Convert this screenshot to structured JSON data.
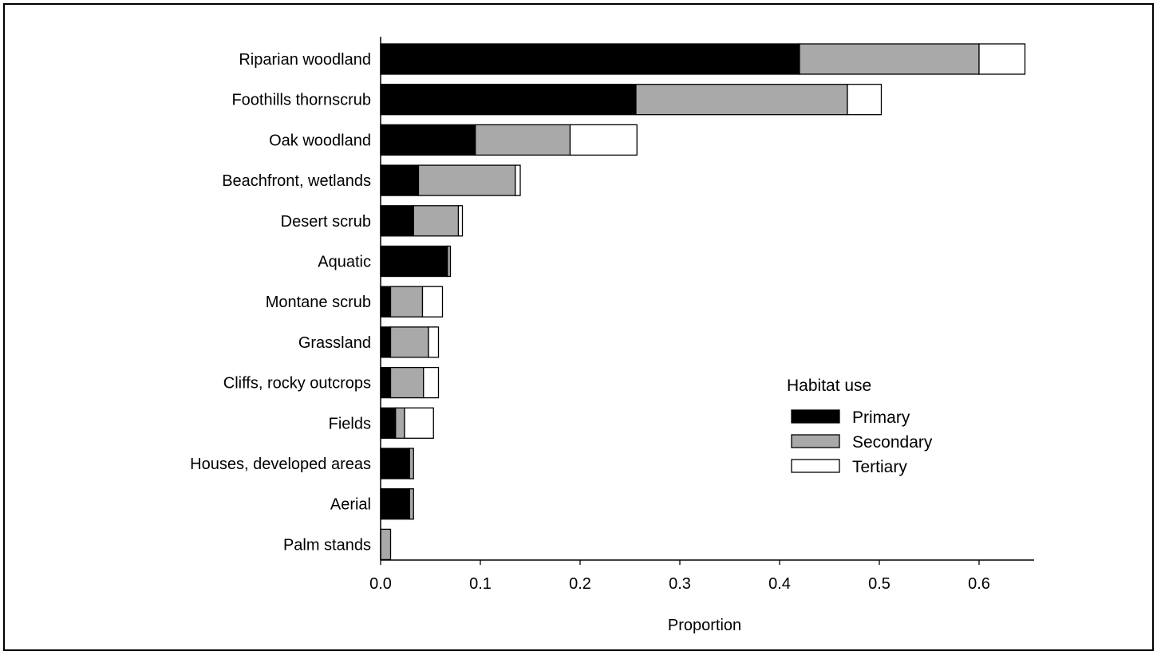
{
  "chart_data": {
    "type": "bar",
    "orientation": "horizontal",
    "stacked": true,
    "xlabel": "Proportion",
    "ylabel": "",
    "xlim": [
      0,
      0.64
    ],
    "xticks": [
      "0.0",
      "0.1",
      "0.2",
      "0.3",
      "0.4",
      "0.5",
      "0.6"
    ],
    "grid": false,
    "legend_position": "right",
    "legend_title": "Habitat use",
    "categories": [
      "Riparian woodland",
      "Foothills thornscrub",
      "Oak woodland",
      "Beachfront, wetlands",
      "Desert scrub",
      "Aquatic",
      "Montane scrub",
      "Grassland",
      "Cliffs, rocky outcrops",
      "Fields",
      "Houses, developed areas",
      "Aerial",
      "Palm stands"
    ],
    "series": [
      {
        "name": "Primary",
        "color": "#000000",
        "values": [
          0.42,
          0.256,
          0.095,
          0.038,
          0.033,
          0.067,
          0.01,
          0.01,
          0.01,
          0.015,
          0.029,
          0.029,
          0.0
        ]
      },
      {
        "name": "Secondary",
        "color": "#a9a9a9",
        "values": [
          0.18,
          0.212,
          0.095,
          0.097,
          0.045,
          0.003,
          0.032,
          0.038,
          0.033,
          0.009,
          0.004,
          0.004,
          0.01
        ]
      },
      {
        "name": "Tertiary",
        "color": "#ffffff",
        "values": [
          0.046,
          0.034,
          0.067,
          0.005,
          0.004,
          0.0,
          0.02,
          0.01,
          0.015,
          0.029,
          0.0,
          0.0,
          0.0
        ]
      }
    ]
  }
}
